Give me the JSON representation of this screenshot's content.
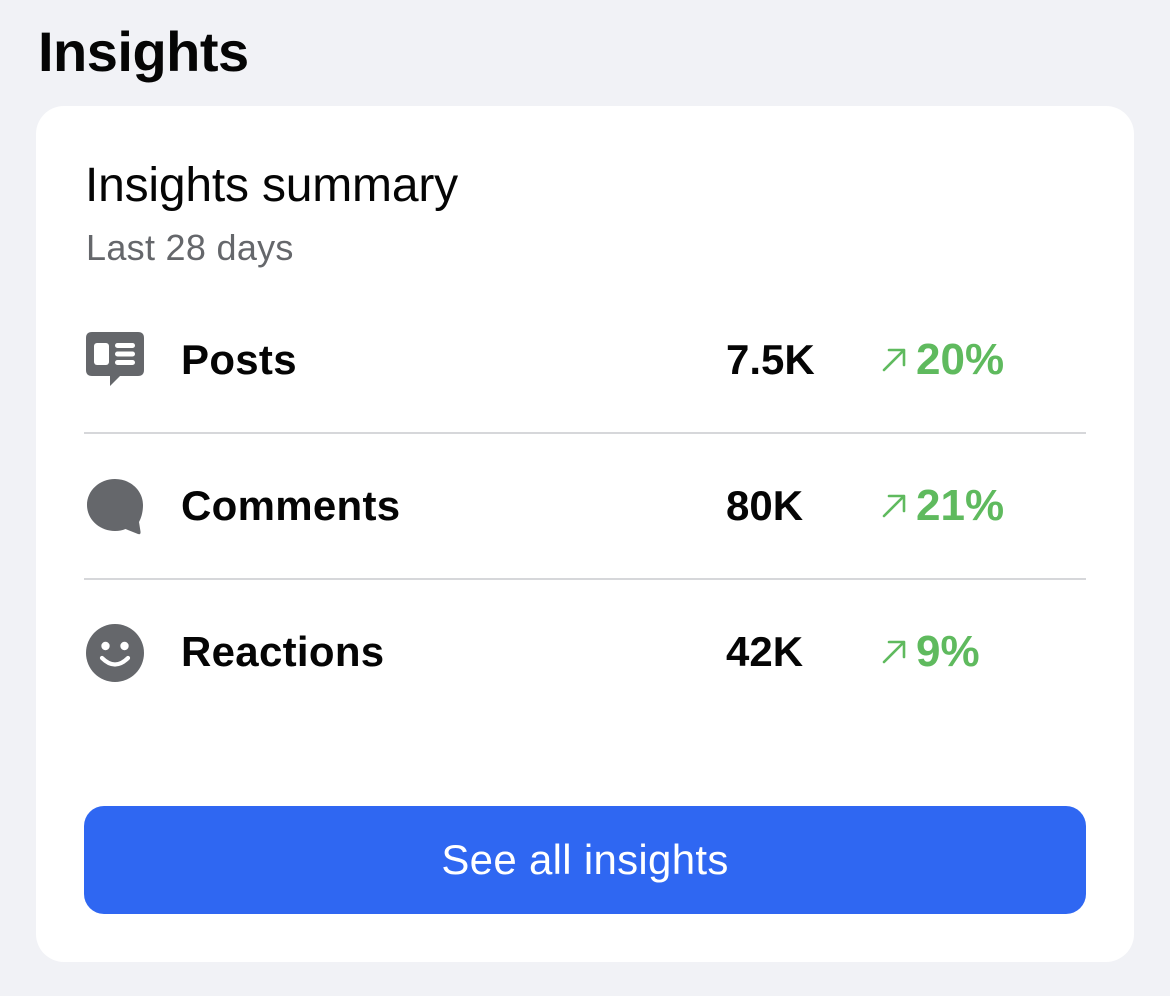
{
  "header": {
    "title": "Insights"
  },
  "summary": {
    "title": "Insights summary",
    "period": "Last 28 days",
    "metrics": [
      {
        "label": "Posts",
        "value": "7.5K",
        "change": "20%",
        "icon": "posts-icon",
        "trend": "up"
      },
      {
        "label": "Comments",
        "value": "80K",
        "change": "21%",
        "icon": "comment-bubble-icon",
        "trend": "up"
      },
      {
        "label": "Reactions",
        "value": "42K",
        "change": "9%",
        "icon": "smiley-face-icon",
        "trend": "up"
      }
    ],
    "button_label": "See all insights"
  },
  "colors": {
    "background": "#f1f2f6",
    "card": "#ffffff",
    "icon": "#65676b",
    "positive_change": "#5fba5e",
    "primary_button": "#2f67f2",
    "divider": "#d6d7da"
  }
}
